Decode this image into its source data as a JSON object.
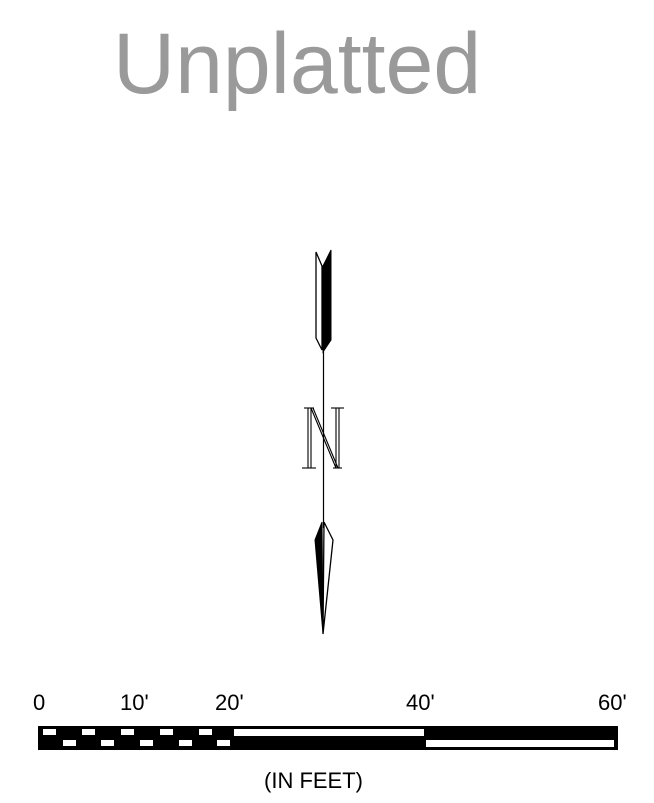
{
  "title": "Unplatted",
  "north_arrow": {
    "label": "N",
    "icon": "north-arrow-icon"
  },
  "scale_bar": {
    "tick_labels": [
      "0",
      "10'",
      "20'",
      "40'",
      "60'"
    ],
    "tick_values": [
      0,
      10,
      20,
      40,
      60
    ],
    "units_label": "(IN FEET)"
  },
  "colors": {
    "title": "#9a9a9a",
    "ink": "#000000",
    "paper": "#ffffff"
  }
}
